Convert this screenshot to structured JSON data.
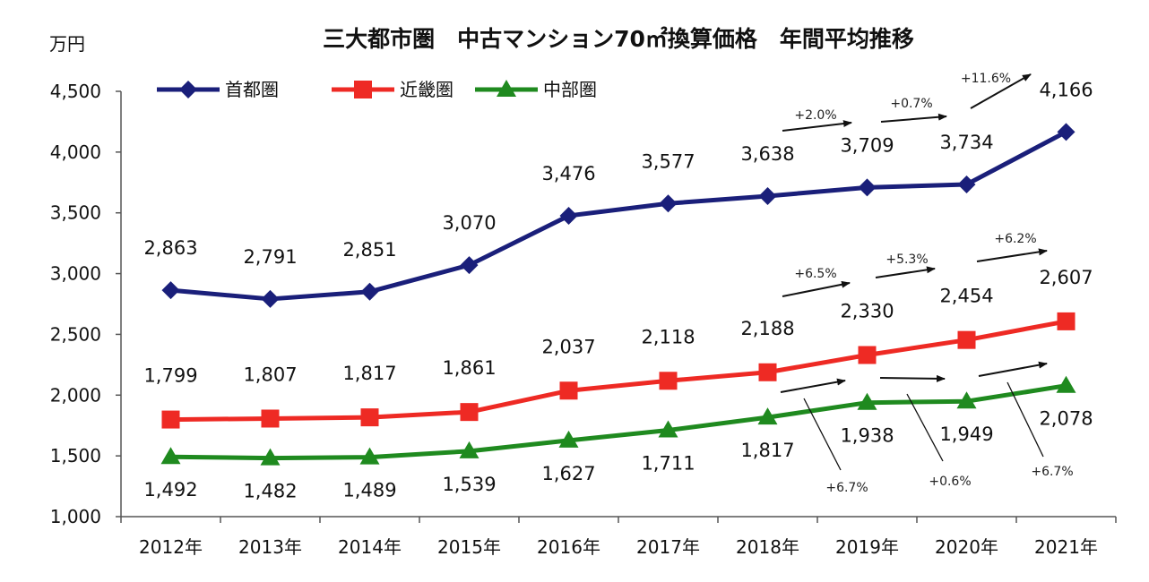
{
  "chart_data": {
    "type": "line",
    "title": "三大都市圏　中古マンション70㎡換算価格　年間平均推移",
    "ylabel": "万円",
    "xlabel": "",
    "ylim": [
      1000,
      4500
    ],
    "yticks": [
      "1,000",
      "1,500",
      "2,000",
      "2,500",
      "3,000",
      "3,500",
      "4,000",
      "4,500"
    ],
    "ytick_values": [
      1000,
      1500,
      2000,
      2500,
      3000,
      3500,
      4000,
      4500
    ],
    "grid": false,
    "legend_position": "top-left",
    "categories": [
      "2012年",
      "2013年",
      "2014年",
      "2015年",
      "2016年",
      "2017年",
      "2018年",
      "2019年",
      "2020年",
      "2021年"
    ],
    "series": [
      {
        "name": "首都圏",
        "color": "#1a1f7a",
        "marker": "diamond",
        "values": [
          2863,
          2791,
          2851,
          3070,
          3476,
          3577,
          3638,
          3709,
          3734,
          4166
        ],
        "labels": [
          "2,863",
          "2,791",
          "2,851",
          "3,070",
          "3,476",
          "3,577",
          "3,638",
          "3,709",
          "3,734",
          "4,166"
        ]
      },
      {
        "name": "近畿圏",
        "color": "#ee2a24",
        "marker": "square",
        "values": [
          1799,
          1807,
          1817,
          1861,
          2037,
          2118,
          2188,
          2330,
          2454,
          2607
        ],
        "labels": [
          "1,799",
          "1,807",
          "1,817",
          "1,861",
          "2,037",
          "2,118",
          "2,188",
          "2,330",
          "2,454",
          "2,607"
        ]
      },
      {
        "name": "中部圏",
        "color": "#1f8a1f",
        "marker": "triangle",
        "values": [
          1492,
          1482,
          1489,
          1539,
          1627,
          1711,
          1817,
          1938,
          1949,
          2078
        ],
        "labels": [
          "1,492",
          "1,482",
          "1,489",
          "1,539",
          "1,627",
          "1,711",
          "1,817",
          "1,938",
          "1,949",
          "2,078"
        ]
      }
    ],
    "annotations": [
      {
        "series": "首都圏",
        "period": "2018年→2019年",
        "text": "+2.0%"
      },
      {
        "series": "首都圏",
        "period": "2019年→2020年",
        "text": "+0.7%"
      },
      {
        "series": "首都圏",
        "period": "2020年→2021年",
        "text": "+11.6%"
      },
      {
        "series": "近畿圏",
        "period": "2018年→2019年",
        "text": "+6.5%"
      },
      {
        "series": "近畿圏",
        "period": "2019年→2020年",
        "text": "+5.3%"
      },
      {
        "series": "近畿圏",
        "period": "2020年→2021年",
        "text": "+6.2%"
      },
      {
        "series": "中部圏",
        "period": "2018年→2019年",
        "text": "+6.7%"
      },
      {
        "series": "中部圏",
        "period": "2019年→2020年",
        "text": "+0.6%"
      },
      {
        "series": "中部圏",
        "period": "2020年→2021年",
        "text": "+6.7%"
      }
    ]
  }
}
